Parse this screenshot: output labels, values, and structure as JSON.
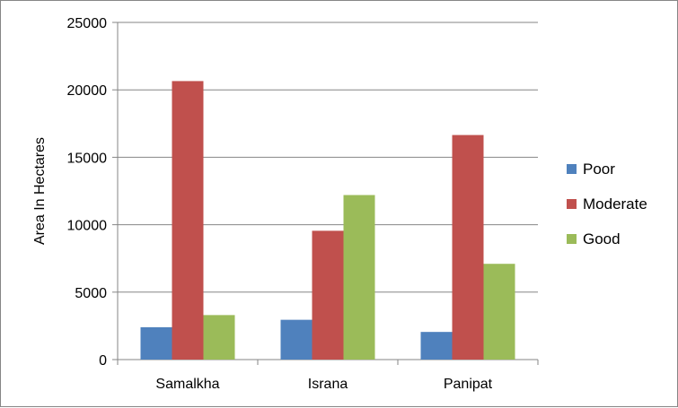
{
  "chart_data": {
    "type": "bar",
    "categories": [
      "Samalkha",
      "Israna",
      "Panipat"
    ],
    "series": [
      {
        "name": "Poor",
        "values": [
          2400,
          2950,
          2050
        ],
        "color": "#4f81bd"
      },
      {
        "name": "Moderate",
        "values": [
          20650,
          9550,
          16650
        ],
        "color": "#c0504d"
      },
      {
        "name": "Good",
        "values": [
          3300,
          12200,
          7100
        ],
        "color": "#9bbb59"
      }
    ],
    "ylabel": "Area In Hectares",
    "ylim": [
      0,
      25000
    ],
    "yticks": [
      "0",
      "5000",
      "10000",
      "15000",
      "20000",
      "25000"
    ],
    "grid": true,
    "legend": "right"
  }
}
